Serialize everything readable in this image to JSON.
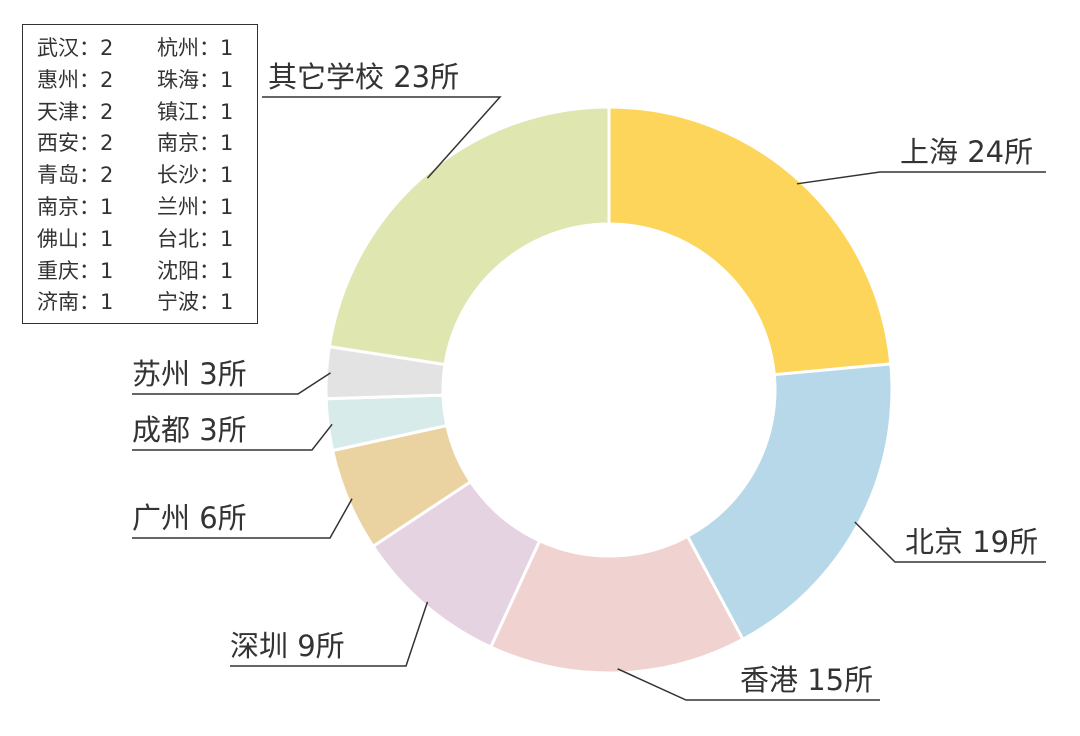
{
  "chart_data": {
    "type": "pie",
    "donut": true,
    "slices": [
      {
        "name": "上海",
        "value": 24,
        "label": "上海 24所",
        "color": "#fcd55a"
      },
      {
        "name": "北京",
        "value": 19,
        "label": "北京 19所",
        "color": "#b6d8e8"
      },
      {
        "name": "香港",
        "value": 15,
        "label": "香港 15所",
        "color": "#f0d3d0"
      },
      {
        "name": "深圳",
        "value": 9,
        "label": "深圳 9所",
        "color": "#e6d3e2"
      },
      {
        "name": "广州",
        "value": 6,
        "label": "广州 6所",
        "color": "#ebd3a1"
      },
      {
        "name": "成都",
        "value": 3,
        "label": "成都 3所",
        "color": "#d7ecea"
      },
      {
        "name": "苏州",
        "value": 3,
        "label": "苏州 3所",
        "color": "#e3e3e3"
      },
      {
        "name": "其它学校",
        "value": 23,
        "label": "其它学校 23所",
        "color": "#dfe6b0"
      }
    ],
    "legend": [
      [
        "武汉：2",
        "杭州：1"
      ],
      [
        "惠州：2",
        "珠海：1"
      ],
      [
        "天津：2",
        "镇江：1"
      ],
      [
        "西安：2",
        "南京：1"
      ],
      [
        "青岛：2",
        "长沙：1"
      ],
      [
        "南京：1",
        "兰州：1"
      ],
      [
        "佛山：1",
        "台北：1"
      ],
      [
        "重庆：1",
        "沈阳：1"
      ],
      [
        "济南：1",
        "宁波：1"
      ]
    ],
    "legend_placement": "top-left"
  }
}
